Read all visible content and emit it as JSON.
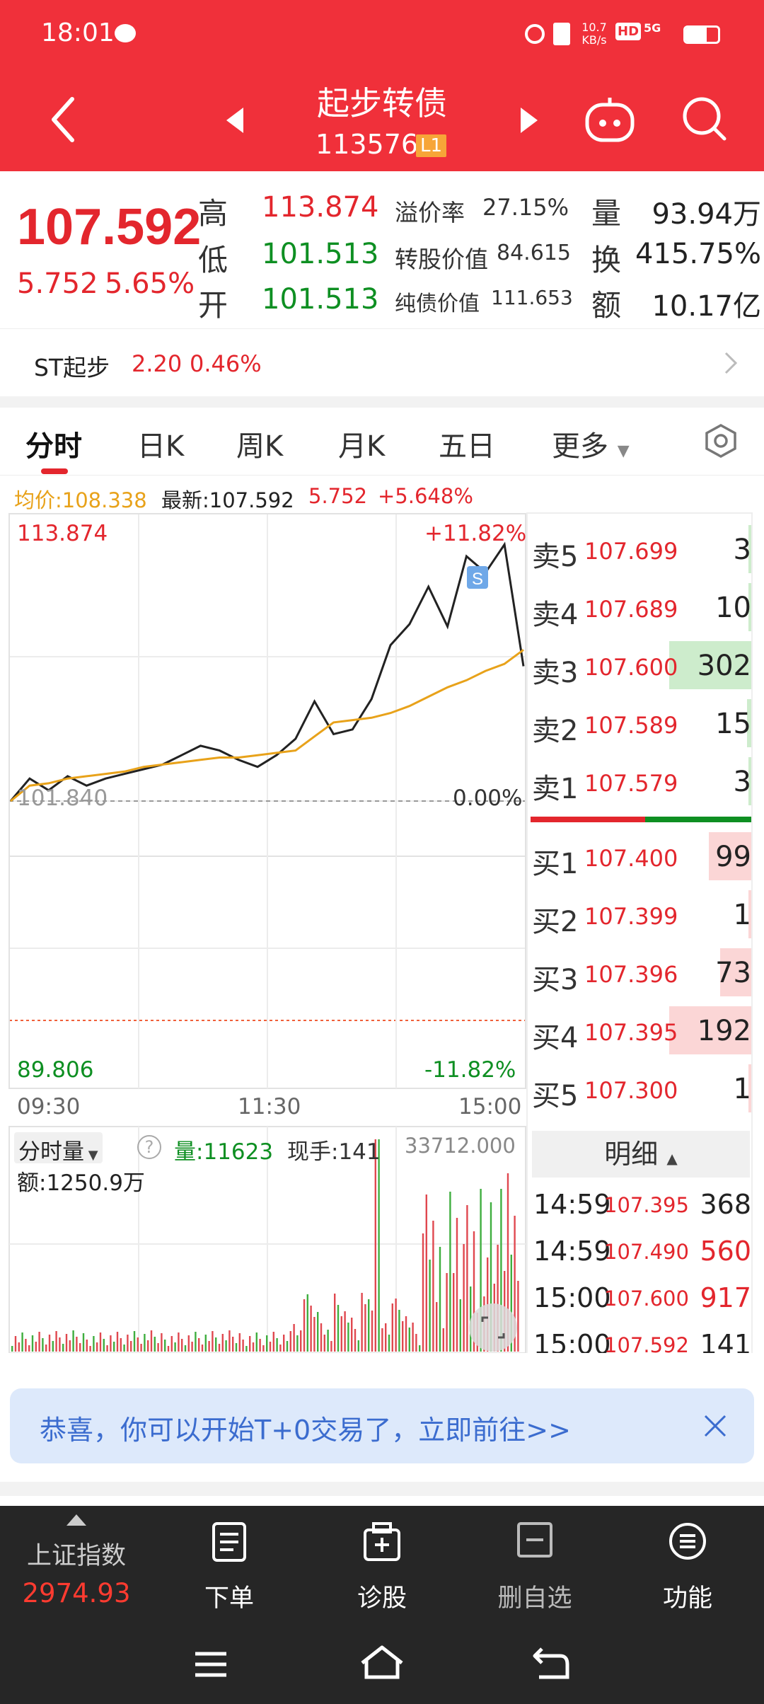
{
  "status_bar": {
    "time": "18:01",
    "net_speed": "10.7",
    "net_unit": "KB/s",
    "hd": "HD",
    "signal": "5G"
  },
  "header": {
    "title": "起步转债",
    "code": "113576",
    "level_badge": "L1"
  },
  "quote": {
    "price": "107.592",
    "change": "5.752",
    "change_pct": "5.65%",
    "high_label": "高",
    "high": "113.874",
    "low_label": "低",
    "low": "101.513",
    "open_label": "开",
    "open": "101.513",
    "premium_label": "溢价率",
    "premium": "27.15%",
    "conv_label": "转股价值",
    "conv": "84.615",
    "bond_label": "纯债价值",
    "bond": "111.653",
    "vol_label": "量",
    "vol": "93.94万",
    "turnover_label": "换",
    "turnover": "415.75%",
    "amount_label": "额",
    "amount": "10.17亿"
  },
  "underlying": {
    "name": "ST起步",
    "price": "2.20",
    "pct": "0.46%"
  },
  "tabs": [
    "分时",
    "日K",
    "周K",
    "月K",
    "五日",
    "更多"
  ],
  "chart_info": {
    "avg_label": "均价:108.338",
    "latest_label": "最新:107.592",
    "change": "5.752",
    "change_pct": "+5.648%"
  },
  "chart_data": {
    "type": "line",
    "y_top_label": "113.874",
    "y_top_pct": "+11.82%",
    "y_mid_label": "101.840",
    "y_mid_pct": "0.00%",
    "y_bottom_label": "89.806",
    "y_bottom_pct": "-11.82%",
    "x_labels": [
      "09:30",
      "11:30",
      "15:00"
    ],
    "ylim": [
      89.806,
      113.874
    ],
    "series": [
      {
        "values": [
          101.84,
          102.8,
          102.3,
          102.9,
          102.5,
          102.8,
          103.0,
          103.2,
          103.4,
          103.8,
          104.2,
          104.0,
          103.6,
          103.3,
          103.8,
          104.5,
          106.1,
          104.7,
          104.9,
          106.2,
          108.5,
          109.4,
          111.0,
          109.3,
          112.3,
          111.6,
          112.8,
          107.6
        ]
      },
      {
        "values": [
          101.84,
          102.5,
          102.6,
          102.8,
          102.9,
          103.0,
          103.1,
          103.3,
          103.4,
          103.5,
          103.6,
          103.7,
          103.7,
          103.8,
          103.9,
          104.0,
          104.6,
          105.2,
          105.3,
          105.4,
          105.6,
          105.9,
          106.3,
          106.7,
          107.0,
          107.4,
          107.7,
          108.3
        ]
      }
    ],
    "volume_max_label": "33712.000"
  },
  "volume_panel": {
    "dropdown": "分时量",
    "vol_label": "量:11623",
    "now_label": "现手:141",
    "amount_label": "额:1250.9万"
  },
  "order_book": {
    "asks": [
      {
        "label": "卖5",
        "price": "107.699",
        "volume": "3"
      },
      {
        "label": "卖4",
        "price": "107.689",
        "volume": "10"
      },
      {
        "label": "卖3",
        "price": "107.600",
        "volume": "302"
      },
      {
        "label": "卖2",
        "price": "107.589",
        "volume": "15"
      },
      {
        "label": "卖1",
        "price": "107.579",
        "volume": "3"
      }
    ],
    "bids": [
      {
        "label": "买1",
        "price": "107.400",
        "volume": "99"
      },
      {
        "label": "买2",
        "price": "107.399",
        "volume": "1"
      },
      {
        "label": "买3",
        "price": "107.396",
        "volume": "73"
      },
      {
        "label": "买4",
        "price": "107.395",
        "volume": "192"
      },
      {
        "label": "买5",
        "price": "107.300",
        "volume": "1"
      }
    ]
  },
  "ticks_header": "明细",
  "ticks": [
    {
      "time": "14:59",
      "price": "107.395",
      "volume": "368"
    },
    {
      "time": "14:59",
      "price": "107.490",
      "volume": "560"
    },
    {
      "time": "15:00",
      "price": "107.600",
      "volume": "917"
    },
    {
      "time": "15:00",
      "price": "107.592",
      "volume": "141"
    }
  ],
  "banner": {
    "text": "恭喜，你可以开始T+0交易了，立即前往>>"
  },
  "bottom_bar": {
    "index_name": "上证指数",
    "index_value": "2974.93",
    "items": [
      "下单",
      "诊股",
      "删自选",
      "功能"
    ]
  },
  "colors": {
    "brand_red": "#f0303a",
    "up_red": "#e3262d",
    "down_green": "#0e8f22",
    "avg_orange": "#e8a21a"
  }
}
